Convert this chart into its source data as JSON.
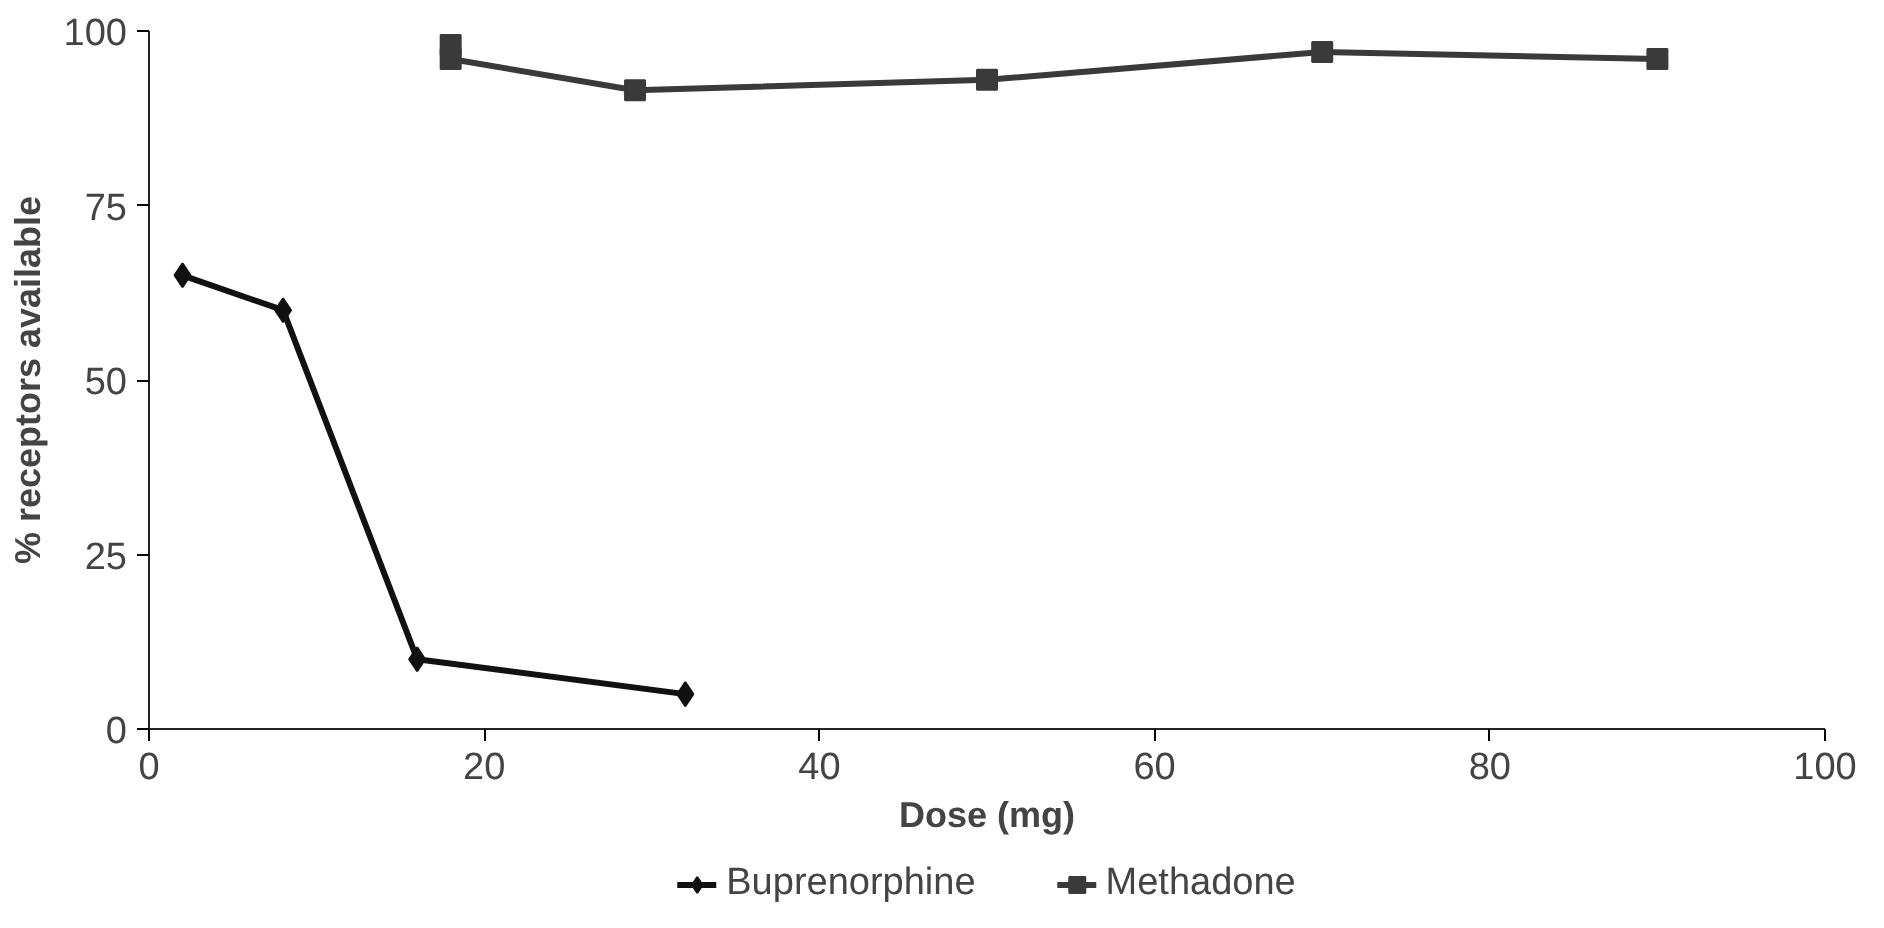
{
  "chart_data": {
    "type": "line",
    "xlabel": "Dose (mg)",
    "ylabel": "% receptors available",
    "xlim": [
      0,
      100
    ],
    "xticks": [
      0,
      20,
      40,
      60,
      80,
      100
    ],
    "ylim": [
      0,
      100
    ],
    "yticks": [
      0,
      25,
      50,
      75,
      100
    ],
    "grid": false,
    "legend": "bottom",
    "series": [
      {
        "name": "Buprenorphine",
        "color": "#111111",
        "marker": "diamond",
        "x": [
          2,
          8,
          16,
          32
        ],
        "values": [
          65,
          60,
          10,
          5
        ]
      },
      {
        "name": "Methadone",
        "color": "#3a3a3a",
        "marker": "square",
        "x": [
          18,
          18,
          29,
          50,
          70,
          90
        ],
        "values": [
          98,
          96,
          91.5,
          93,
          97,
          96
        ]
      }
    ]
  }
}
